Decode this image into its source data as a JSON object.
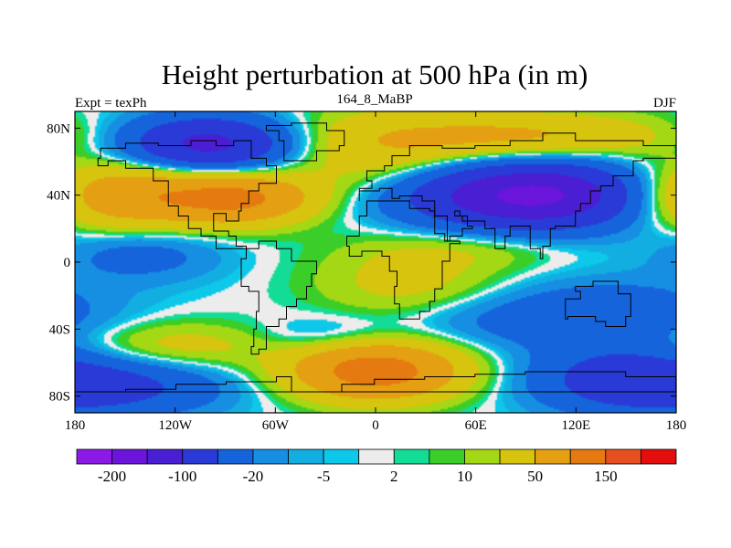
{
  "chart_data": {
    "type": "heatmap",
    "title": "Height perturbation at 500 hPa (in m)",
    "left_label": "Expt = texPh",
    "center_label": "164_8_MaBP",
    "right_label": "DJF",
    "x_range": [
      -180,
      180
    ],
    "y_range": [
      -90,
      90
    ],
    "x_ticks": [
      {
        "value": -180,
        "label": "180"
      },
      {
        "value": -120,
        "label": "120W"
      },
      {
        "value": -60,
        "label": "60W"
      },
      {
        "value": 0,
        "label": "0"
      },
      {
        "value": 60,
        "label": "60E"
      },
      {
        "value": 120,
        "label": "120E"
      },
      {
        "value": 180,
        "label": "180"
      }
    ],
    "y_ticks": [
      {
        "value": 80,
        "label": "80N"
      },
      {
        "value": 40,
        "label": "40N"
      },
      {
        "value": 0,
        "label": "0"
      },
      {
        "value": -40,
        "label": "40S"
      },
      {
        "value": -80,
        "label": "80S"
      }
    ],
    "colorbar": {
      "colors": [
        "#8c1ae6",
        "#6a14dc",
        "#4a1ed2",
        "#2a3ad6",
        "#1564dc",
        "#168ee2",
        "#12aee2",
        "#0dc8e8",
        "#ececec",
        "#12dc96",
        "#3cce28",
        "#a4d814",
        "#d6c40e",
        "#e4a012",
        "#e47a10",
        "#e65020",
        "#e40e0e"
      ],
      "labels": [
        {
          "boundary": 1,
          "label": "-200"
        },
        {
          "boundary": 3,
          "label": "-100"
        },
        {
          "boundary": 5,
          "label": "-20"
        },
        {
          "boundary": 7,
          "label": "-5"
        },
        {
          "boundary": 9,
          "label": "2"
        },
        {
          "boundary": 11,
          "label": "10"
        },
        {
          "boundary": 13,
          "label": "50"
        },
        {
          "boundary": 15,
          "label": "150"
        }
      ]
    },
    "field_description": "Wavenumber-3 style pattern: negative (blue/purple) anomalies over North Pacific (~150W-60W, 65N) and North Atlantic-Asia (~60E-150E, 40N); positive (yellow-orange) anomalies over North Pacific 40N (~180-60W), Arctic, Southern Ocean 65S (~60W-60E); near-zero band along the equator from 60E eastward.",
    "gaussians": [
      {
        "lon": -100,
        "lat": 70,
        "sx": 36,
        "sy": 12,
        "amp": -120
      },
      {
        "lon": 100,
        "lat": 40,
        "sx": 55,
        "sy": 14,
        "amp": -180
      },
      {
        "lon": -160,
        "lat": 40,
        "sx": 50,
        "sy": 14,
        "amp": 110
      },
      {
        "lon": -80,
        "lat": 38,
        "sx": 30,
        "sy": 10,
        "amp": 90
      },
      {
        "lon": 90,
        "lat": 75,
        "sx": 60,
        "sy": 10,
        "amp": 55
      },
      {
        "lon": 0,
        "lat": 65,
        "sx": 45,
        "sy": 18,
        "amp": 40
      },
      {
        "lon": -140,
        "lat": 5,
        "sx": 35,
        "sy": 12,
        "amp": -30
      },
      {
        "lon": 140,
        "lat": -30,
        "sx": 45,
        "sy": 14,
        "amp": -35
      },
      {
        "lon": 60,
        "lat": -35,
        "sx": 55,
        "sy": 12,
        "amp": -25
      },
      {
        "lon": 0,
        "lat": -65,
        "sx": 35,
        "sy": 12,
        "amp": 130
      },
      {
        "lon": 20,
        "lat": -15,
        "sx": 40,
        "sy": 20,
        "amp": 30
      },
      {
        "lon": 150,
        "lat": -70,
        "sx": 40,
        "sy": 14,
        "amp": -70
      },
      {
        "lon": -150,
        "lat": -75,
        "sx": 45,
        "sy": 12,
        "amp": -50
      },
      {
        "lon": -120,
        "lat": -50,
        "sx": 45,
        "sy": 10,
        "amp": 30
      },
      {
        "lon": -30,
        "lat": -45,
        "sx": 30,
        "sy": 8,
        "amp": -20
      },
      {
        "lon": 60,
        "lat": 8,
        "sx": 40,
        "sy": 8,
        "amp": 15
      }
    ]
  }
}
